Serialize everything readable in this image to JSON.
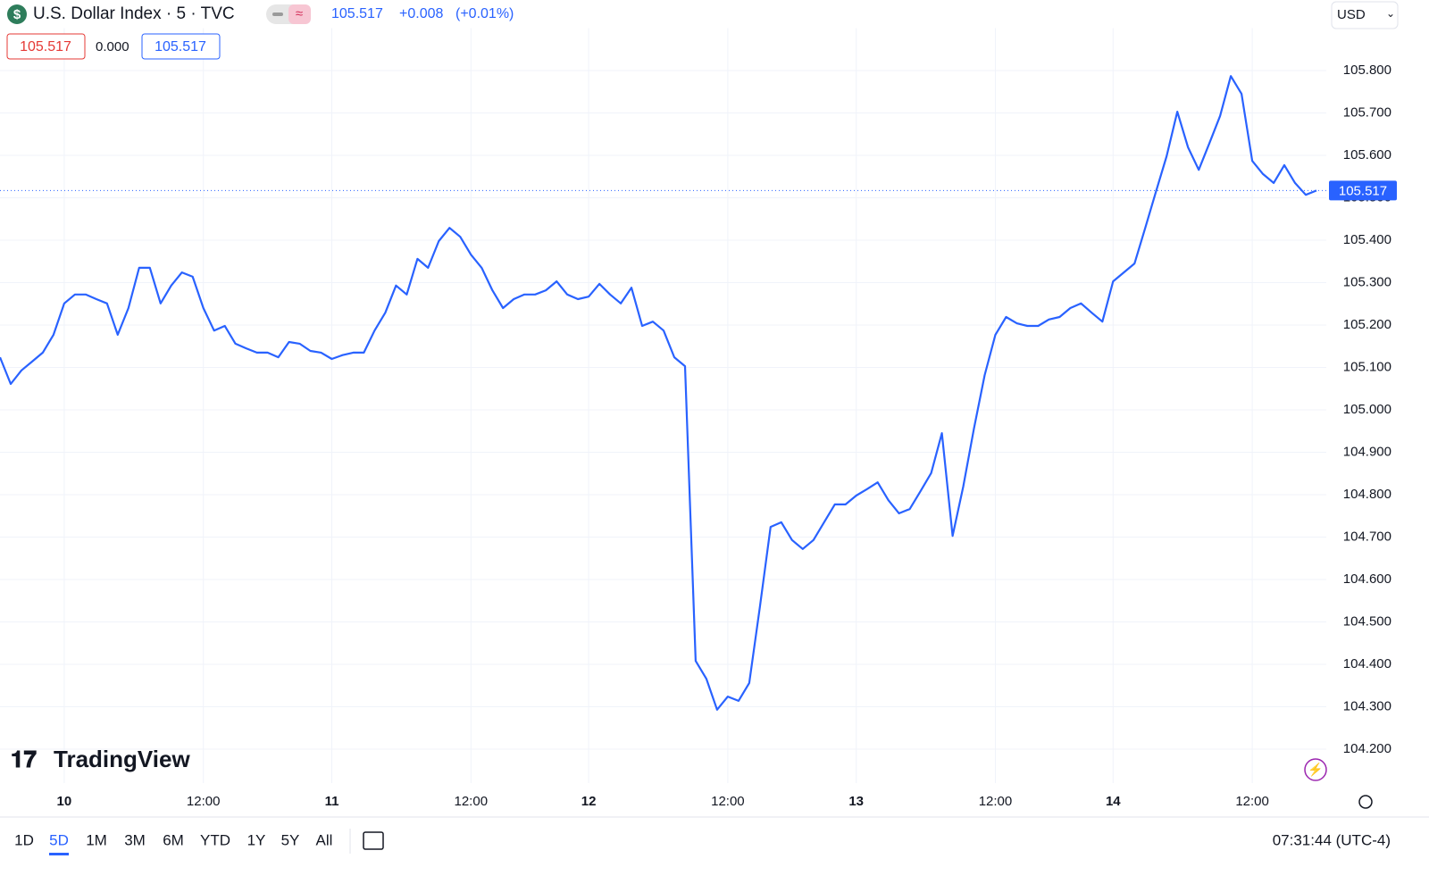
{
  "header": {
    "symbol": "U.S. Dollar Index · 5 · TVC",
    "price": "105.517",
    "change": "+0.008",
    "change_pct": "(+0.01%)",
    "currency": "USD"
  },
  "legend": {
    "open": "105.517",
    "diff": "0.000",
    "close": "105.517"
  },
  "logo": "TradingView",
  "toolbar": {
    "ranges": [
      "1D",
      "5D",
      "1M",
      "3M",
      "6M",
      "YTD",
      "1Y",
      "5Y",
      "All"
    ],
    "active": "5D",
    "clock": "07:31:44 (UTC-4)"
  },
  "chart_data": {
    "type": "line",
    "color": "#2962ff",
    "grid": true,
    "categories": [
      null,
      null,
      null,
      null,
      null,
      null,
      "10",
      null,
      null,
      null,
      null,
      null,
      null,
      null,
      null,
      null,
      null,
      null,
      null,
      "12:00",
      null,
      null,
      null,
      null,
      null,
      null,
      null,
      null,
      null,
      null,
      null,
      "11",
      null,
      null,
      null,
      null,
      null,
      null,
      null,
      null,
      null,
      null,
      null,
      null,
      "12:00",
      null,
      null,
      null,
      null,
      null,
      null,
      null,
      null,
      null,
      null,
      "12",
      null,
      null,
      null,
      null,
      null,
      null,
      null,
      null,
      null,
      null,
      null,
      null,
      "12:00",
      null,
      null,
      null,
      null,
      null,
      null,
      null,
      null,
      null,
      null,
      null,
      "13",
      null,
      null,
      null,
      null,
      null,
      null,
      null,
      null,
      null,
      null,
      null,
      null,
      "12:00",
      null,
      null,
      null,
      null,
      null,
      null,
      null,
      null,
      null,
      null,
      "14",
      null,
      null,
      null,
      null,
      null,
      null,
      null,
      null,
      null,
      null,
      null,
      null,
      "12:00",
      null,
      null,
      null,
      null,
      null,
      null
    ],
    "values": [
      105.124,
      105.061,
      105.093,
      105.114,
      105.135,
      105.177,
      105.251,
      105.272,
      105.272,
      105.261,
      105.251,
      105.177,
      105.24,
      105.335,
      105.335,
      105.251,
      105.293,
      105.324,
      105.314,
      105.24,
      105.187,
      105.198,
      105.156,
      105.145,
      105.135,
      105.135,
      105.124,
      105.16,
      105.156,
      105.139,
      105.135,
      105.12,
      105.129,
      105.135,
      105.135,
      105.187,
      105.229,
      105.293,
      105.272,
      105.356,
      105.335,
      105.398,
      105.429,
      105.408,
      105.366,
      105.335,
      105.282,
      105.24,
      105.261,
      105.272,
      105.272,
      105.282,
      105.303,
      105.272,
      105.261,
      105.267,
      105.297,
      105.272,
      105.251,
      105.288,
      105.198,
      105.208,
      105.187,
      105.124,
      105.103,
      104.408,
      104.366,
      104.293,
      104.324,
      104.314,
      104.356,
      104.535,
      104.724,
      104.735,
      104.693,
      104.672,
      104.693,
      104.735,
      104.777,
      104.777,
      104.798,
      104.813,
      104.829,
      104.787,
      104.756,
      104.766,
      104.808,
      104.851,
      104.945,
      104.703,
      104.819,
      104.956,
      105.082,
      105.177,
      105.219,
      105.204,
      105.198,
      105.198,
      105.213,
      105.219,
      105.24,
      105.251,
      105.229,
      105.208,
      105.303,
      105.324,
      105.345,
      105.429,
      105.514,
      105.598,
      105.703,
      105.619,
      105.566,
      105.629,
      105.693,
      105.787,
      105.745,
      105.587,
      105.556,
      105.535,
      105.577,
      105.535,
      105.507,
      105.517
    ],
    "ylim": [
      104.12,
      105.9
    ],
    "yticks": [
      {
        "value": 104.2,
        "label": "104.200"
      },
      {
        "value": 104.3,
        "label": "104.300"
      },
      {
        "value": 104.4,
        "label": "104.400"
      },
      {
        "value": 104.5,
        "label": "104.500"
      },
      {
        "value": 104.6,
        "label": "104.600"
      },
      {
        "value": 104.7,
        "label": "104.700"
      },
      {
        "value": 104.8,
        "label": "104.800"
      },
      {
        "value": 104.9,
        "label": "104.900"
      },
      {
        "value": 105.0,
        "label": "105.000"
      },
      {
        "value": 105.1,
        "label": "105.100"
      },
      {
        "value": 105.2,
        "label": "105.200"
      },
      {
        "value": 105.3,
        "label": "105.300"
      },
      {
        "value": 105.4,
        "label": "105.400"
      },
      {
        "value": 105.5,
        "label": "105.500"
      },
      {
        "value": 105.6,
        "label": "105.600"
      },
      {
        "value": 105.7,
        "label": "105.700"
      },
      {
        "value": 105.8,
        "label": "105.800"
      }
    ]
  }
}
